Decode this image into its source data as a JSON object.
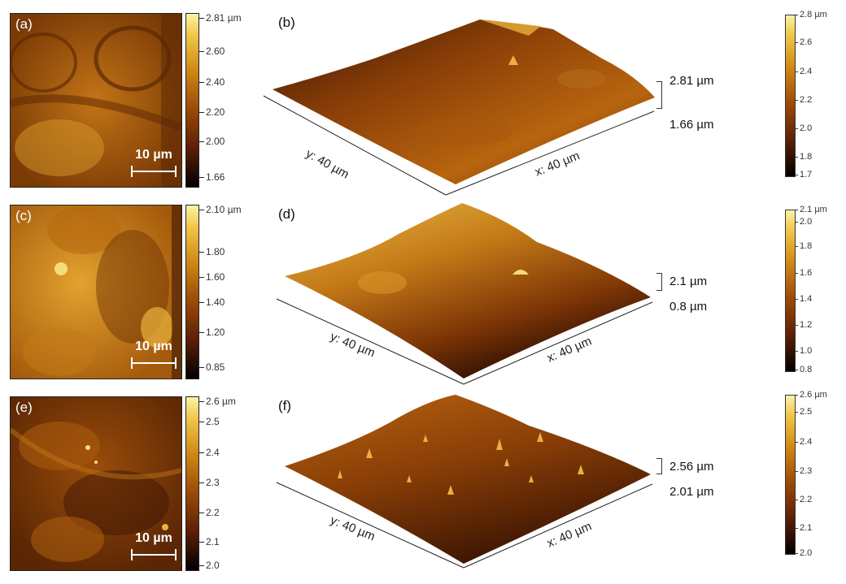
{
  "panels": [
    {
      "map_label": "(a)",
      "surface_label": "(b)",
      "scalebar": "10 µm",
      "map_colorbar": [
        "2.81 µm",
        "2.60",
        "2.40",
        "2.20",
        "2.00",
        "1.66"
      ],
      "z_max": "2.81 µm",
      "z_min": "1.66 µm",
      "y_axis": "y: 40 µm",
      "x_axis": "x: 40 µm",
      "colorbar": [
        "2.8 µm",
        "2.6",
        "2.4",
        "2.2",
        "2.0",
        "1.8",
        "1.7"
      ]
    },
    {
      "map_label": "(c)",
      "surface_label": "(d)",
      "scalebar": "10 µm",
      "map_colorbar": [
        "2.10 µm",
        "1.80",
        "1.60",
        "1.40",
        "1.20",
        "0.85"
      ],
      "z_max": "2.1 µm",
      "z_min": "0.8 µm",
      "y_axis": "y: 40 µm",
      "x_axis": "x: 40 µm",
      "colorbar": [
        "2.1 µm",
        "2.0",
        "1.8",
        "1.6",
        "1.4",
        "1.2",
        "1.0",
        "0.8"
      ]
    },
    {
      "map_label": "(e)",
      "surface_label": "(f)",
      "scalebar": "10 µm",
      "map_colorbar": [
        "2.6 µm",
        "2.5",
        "2.4",
        "2.3",
        "2.2",
        "2.1",
        "2.0"
      ],
      "z_max": "2.56 µm",
      "z_min": "2.01 µm",
      "y_axis": "y: 40 µm",
      "x_axis": "x: 40 µm",
      "colorbar": [
        "2.6 µm",
        "2.5",
        "2.4",
        "2.3",
        "2.2",
        "2.1",
        "2.0"
      ]
    }
  ],
  "colors": {
    "dark": "#3a1503",
    "mid": "#9c4a08",
    "bright": "#e0a125",
    "highlight": "#fcf2a8"
  }
}
